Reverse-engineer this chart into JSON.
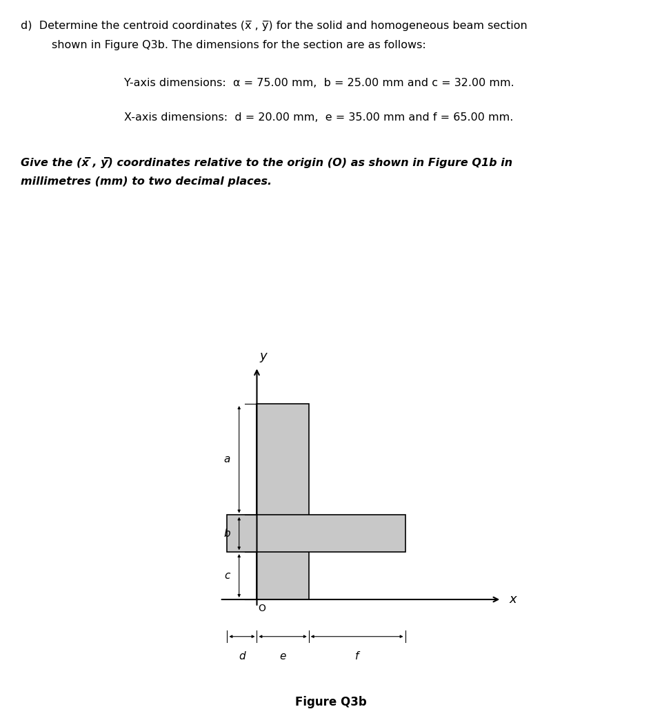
{
  "a": 75.0,
  "b": 25.0,
  "c": 32.0,
  "d": 20.0,
  "e": 35.0,
  "f": 65.0,
  "fill_color": "#c8c8c8",
  "edge_color": "#000000",
  "bg_color": "#ffffff",
  "text_color": "#000000",
  "line1": "d)  Determine the centroid coordinates (",
  "line1b": "x̅ , y̅",
  "line1c": ") for the solid and homogeneous beam section",
  "line2": "     shown in Figure Q3b. The dimensions for the section are as follows:",
  "yaxis_text": "Y-axis dimensions:  a = 75.00 mm,  b = 25.00 mm and c = 32.00 mm.",
  "xaxis_text": "X-axis dimensions:  d = 20.00 mm,  e = 35.00 mm and f = 65.00 mm.",
  "bold1": "Give the (",
  "bold1b": "x̅ , y̅",
  "bold1c": ") coordinates relative to the origin (O) as shown in Figure Q1b in",
  "bold2": "millimetres (mm) to two decimal places.",
  "figure_caption": "Figure Q3b"
}
